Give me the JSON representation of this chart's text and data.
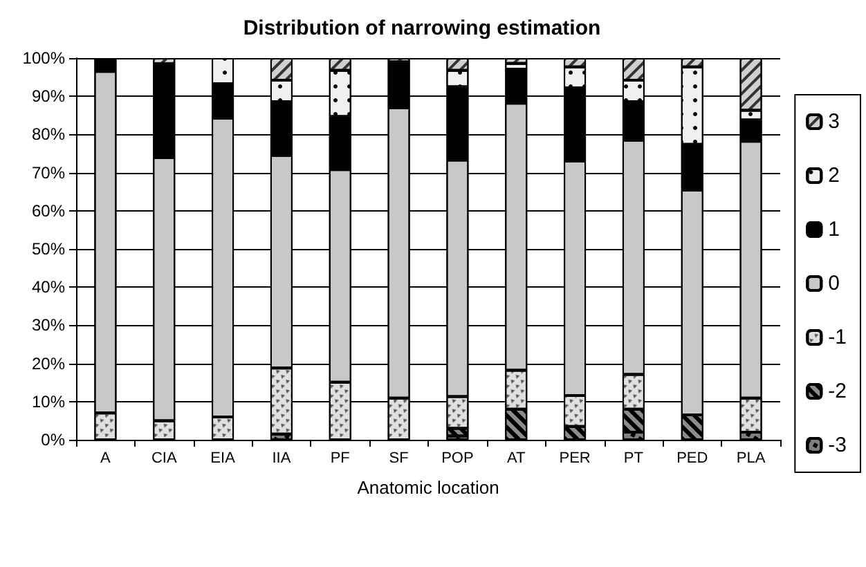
{
  "chart_data": {
    "type": "bar",
    "title": "Distribution of narrowing estimation",
    "xlabel": "Anatomic location",
    "categories": [
      "A",
      "CIA",
      "EIA",
      "IIA",
      "PF",
      "SF",
      "POP",
      "AT",
      "PER",
      "PT",
      "PED",
      "PLA"
    ],
    "stacked": true,
    "series": [
      {
        "name": "-3",
        "color": "#808080",
        "values": [
          0,
          0,
          0,
          1.5,
          0,
          0,
          1,
          0,
          0,
          2,
          0,
          2
        ]
      },
      {
        "name": "-2",
        "color": "#8c8c8c",
        "values": [
          0,
          0,
          0,
          0,
          0,
          0,
          2,
          8,
          3.5,
          6,
          6.5,
          0
        ]
      },
      {
        "name": "-1",
        "color": "#e0e0e0",
        "values": [
          7,
          5,
          6,
          17.3,
          15.1,
          10.9,
          8.3,
          10.2,
          8.1,
          9.1,
          0,
          8.9
        ]
      },
      {
        "name": "0",
        "color": "#c8c8c8",
        "values": [
          89.5,
          68.9,
          78.3,
          55.7,
          55.7,
          76.1,
          62,
          70,
          61.4,
          61.4,
          58.9,
          67.3
        ]
      },
      {
        "name": "1",
        "color": "#000000",
        "values": [
          3.5,
          24.6,
          9,
          14.1,
          13.9,
          12,
          19.2,
          8.9,
          19.2,
          10.1,
          12,
          5.6
        ]
      },
      {
        "name": "2",
        "color": "#f0f0f0",
        "values": [
          0,
          0,
          6.7,
          5.6,
          12.1,
          0,
          4.3,
          1.5,
          5.5,
          5.6,
          20.3,
          2.5
        ]
      },
      {
        "name": "3",
        "color": "#d0d0d0",
        "values": [
          0,
          1.5,
          0,
          5.8,
          3.2,
          1,
          3.2,
          1.4,
          2.3,
          5.8,
          2.3,
          13.7
        ]
      }
    ],
    "ylim": [
      0,
      100
    ],
    "yticks": [
      {
        "value": 0,
        "label": "0%"
      },
      {
        "value": 10,
        "label": "10%"
      },
      {
        "value": 20,
        "label": "20%"
      },
      {
        "value": 30,
        "label": "30%"
      },
      {
        "value": 40,
        "label": "40%"
      },
      {
        "value": 50,
        "label": "50%"
      },
      {
        "value": 60,
        "label": "60%"
      },
      {
        "value": 70,
        "label": "70%"
      },
      {
        "value": 80,
        "label": "80%"
      },
      {
        "value": 90,
        "label": "90%"
      },
      {
        "value": 100,
        "label": "100%"
      }
    ],
    "grid": "y",
    "legend": "right"
  }
}
